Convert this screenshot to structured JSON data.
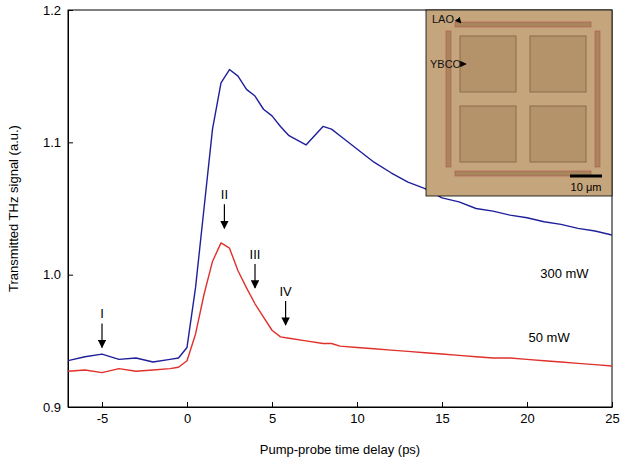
{
  "chart_data": {
    "type": "line",
    "x_label": "Pump-probe time delay (ps)",
    "y_label": "Transmitted THz signal (a.u.)",
    "xlim": [
      -7,
      25
    ],
    "xticks": [
      -5,
      0,
      5,
      10,
      15,
      20,
      25
    ],
    "ylim": [
      0.9,
      1.2
    ],
    "yticks": [
      0.9,
      {
        "value": 1,
        "label": "1.0"
      },
      1.1,
      1.2
    ],
    "grid": false,
    "x": [
      -7,
      -6,
      -5,
      -4,
      -3,
      -2,
      -1,
      -0.5,
      0,
      0.5,
      1,
      1.5,
      2,
      2.5,
      3,
      3.5,
      4,
      4.5,
      5,
      5.5,
      6,
      7,
      8,
      8.5,
      9,
      10,
      11,
      12,
      13,
      14,
      15,
      16,
      17,
      18,
      19,
      20,
      21,
      22,
      23,
      24,
      25
    ],
    "series": [
      {
        "color": "#1f1f9c",
        "values": [
          0.935,
          0.938,
          0.94,
          0.936,
          0.937,
          0.934,
          0.936,
          0.937,
          0.945,
          0.99,
          1.05,
          1.11,
          1.145,
          1.155,
          1.15,
          1.14,
          1.135,
          1.125,
          1.12,
          1.112,
          1.105,
          1.098,
          1.112,
          1.11,
          1.105,
          1.095,
          1.085,
          1.077,
          1.07,
          1.065,
          1.058,
          1.055,
          1.05,
          1.048,
          1.045,
          1.043,
          1.04,
          1.038,
          1.035,
          1.033,
          1.03
        ]
      },
      {
        "color": "#e0302a",
        "values": [
          0.927,
          0.928,
          0.926,
          0.929,
          0.927,
          0.928,
          0.929,
          0.93,
          0.935,
          0.955,
          0.985,
          1.01,
          1.024,
          1.02,
          1.003,
          0.99,
          0.978,
          0.968,
          0.958,
          0.953,
          0.952,
          0.95,
          0.948,
          0.948,
          0.946,
          0.945,
          0.944,
          0.943,
          0.942,
          0.941,
          0.94,
          0.939,
          0.938,
          0.937,
          0.937,
          0.936,
          0.935,
          0.934,
          0.933,
          0.932,
          0.931
        ]
      }
    ],
    "annotations": [
      {
        "text": "300 mW",
        "x": 22.2,
        "y": 1.0
      },
      {
        "text": "50 mW",
        "x": 21.3,
        "y": 0.952
      }
    ],
    "arrows": [
      {
        "label": "I",
        "x": -5,
        "y": 0.945
      },
      {
        "label": "II",
        "x": 2.2,
        "y": 1.035
      },
      {
        "label": "III",
        "x": 4,
        "y": 0.99
      },
      {
        "label": "IV",
        "x": 5.8,
        "y": 0.962
      }
    ],
    "inset": {
      "labels": [
        "LAO",
        "YBCO"
      ],
      "scale_bar": "10 μm"
    }
  }
}
